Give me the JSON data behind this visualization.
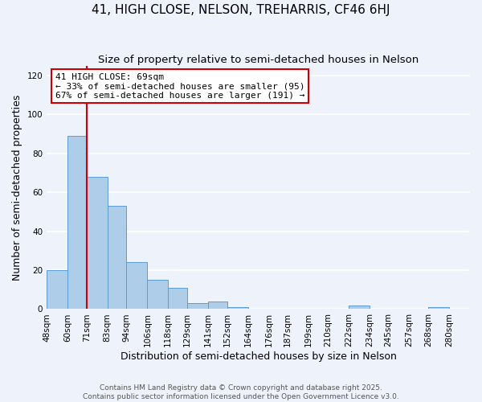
{
  "title": "41, HIGH CLOSE, NELSON, TREHARRIS, CF46 6HJ",
  "subtitle": "Size of property relative to semi-detached houses in Nelson",
  "xlabel": "Distribution of semi-detached houses by size in Nelson",
  "ylabel": "Number of semi-detached properties",
  "bin_labels": [
    "48sqm",
    "60sqm",
    "71sqm",
    "83sqm",
    "94sqm",
    "106sqm",
    "118sqm",
    "129sqm",
    "141sqm",
    "152sqm",
    "164sqm",
    "176sqm",
    "187sqm",
    "199sqm",
    "210sqm",
    "222sqm",
    "234sqm",
    "245sqm",
    "257sqm",
    "268sqm",
    "280sqm"
  ],
  "bin_edges": [
    48,
    60,
    71,
    83,
    94,
    106,
    118,
    129,
    141,
    152,
    164,
    176,
    187,
    199,
    210,
    222,
    234,
    245,
    257,
    268,
    280
  ],
  "bar_heights": [
    20,
    89,
    68,
    53,
    24,
    15,
    11,
    3,
    4,
    1,
    0,
    0,
    0,
    0,
    0,
    2,
    0,
    0,
    0,
    1,
    0
  ],
  "bar_color": "#aecde8",
  "bar_edge_color": "#5b9bd5",
  "red_line_x": 71,
  "annotation_box_title": "41 HIGH CLOSE: 69sqm",
  "annotation_line1": "← 33% of semi-detached houses are smaller (95)",
  "annotation_line2": "67% of semi-detached houses are larger (191) →",
  "annotation_box_color": "#ffffff",
  "annotation_box_edge_color": "#cc0000",
  "red_line_color": "#cc0000",
  "ylim": [
    0,
    125
  ],
  "yticks": [
    0,
    20,
    40,
    60,
    80,
    100,
    120
  ],
  "footer1": "Contains HM Land Registry data © Crown copyright and database right 2025.",
  "footer2": "Contains public sector information licensed under the Open Government Licence v3.0.",
  "background_color": "#eef2fb",
  "grid_color": "#ffffff",
  "title_fontsize": 11,
  "subtitle_fontsize": 9.5,
  "axis_label_fontsize": 9,
  "tick_fontsize": 7.5,
  "footer_fontsize": 6.5,
  "annot_fontsize": 8
}
